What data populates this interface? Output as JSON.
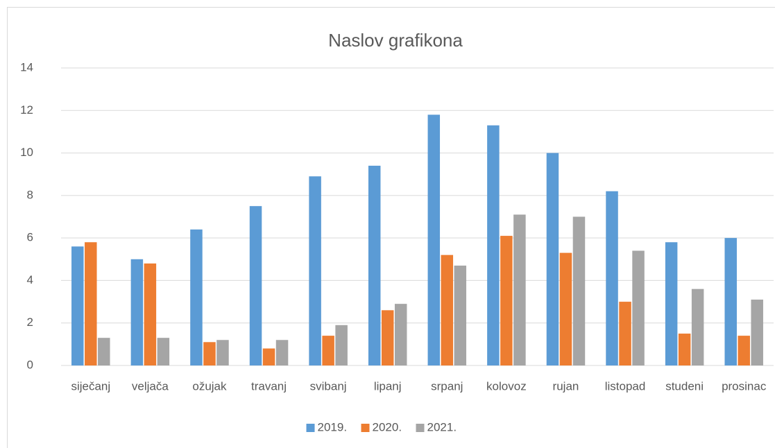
{
  "chart_data": {
    "type": "bar",
    "title": "Naslov grafikona",
    "categories": [
      "siječanj",
      "veljača",
      "ožujak",
      "travanj",
      "svibanj",
      "lipanj",
      "srpanj",
      "kolovoz",
      "rujan",
      "listopad",
      "studeni",
      "prosinac"
    ],
    "series": [
      {
        "name": "2019.",
        "color": "#5b9bd5",
        "values": [
          5.6,
          5.0,
          6.4,
          7.5,
          8.9,
          9.4,
          11.8,
          11.3,
          10.0,
          8.2,
          5.8,
          6.0
        ]
      },
      {
        "name": "2020.",
        "color": "#ed7d31",
        "values": [
          5.8,
          4.8,
          1.1,
          0.8,
          1.4,
          2.6,
          5.2,
          6.1,
          5.3,
          3.0,
          1.5,
          1.4
        ]
      },
      {
        "name": "2021.",
        "color": "#a5a5a5",
        "values": [
          1.3,
          1.3,
          1.2,
          1.2,
          1.9,
          2.9,
          4.7,
          7.1,
          7.0,
          5.4,
          3.6,
          3.1
        ]
      }
    ],
    "ylim": [
      0,
      14
    ],
    "yticks": [
      0,
      2,
      4,
      6,
      8,
      10,
      12,
      14
    ],
    "grid": true,
    "legend": "bottom"
  }
}
